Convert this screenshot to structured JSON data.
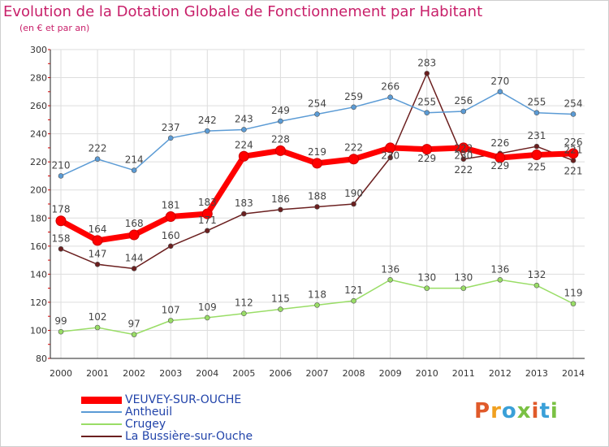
{
  "title": "Evolution de la Dotation Globale de Fonctionnement par Habitant",
  "subtitle": "(en € et par an)",
  "brand": {
    "text": "Proxiti",
    "colors": [
      "#e05a2a",
      "#f0a020",
      "#3aa0d8",
      "#7ac143",
      "#e05a2a",
      "#3aa0d8",
      "#7ac143"
    ]
  },
  "chart_data": {
    "type": "line",
    "x": [
      "2000",
      "2001",
      "2002",
      "2003",
      "2004",
      "2005",
      "2006",
      "2007",
      "2008",
      "2009",
      "2010",
      "2011",
      "2012",
      "2013",
      "2014"
    ],
    "ylim": [
      80,
      300
    ],
    "yticks": [
      80,
      100,
      120,
      140,
      160,
      180,
      200,
      220,
      240,
      260,
      280,
      300
    ],
    "grid": true,
    "legend_position": "bottom-left",
    "series": [
      {
        "name": "VEUVEY-SUR-OUCHE",
        "color": "#ff0000",
        "values": [
          178,
          164,
          168,
          181,
          183,
          224,
          228,
          219,
          222,
          230,
          229,
          230,
          223,
          225,
          226
        ],
        "labels": [
          "178",
          "164",
          "168",
          "181",
          "183",
          "224",
          "228",
          "219",
          "222",
          "",
          "",
          "",
          "",
          "",
          "226"
        ]
      },
      {
        "name": "Antheuil",
        "color": "#5b9bd5",
        "values": [
          210,
          222,
          214,
          237,
          242,
          243,
          249,
          254,
          259,
          266,
          255,
          256,
          270,
          255,
          254
        ],
        "labels": [
          "210",
          "222",
          "214",
          "237",
          "242",
          "243",
          "249",
          "254",
          "259",
          "266",
          "255",
          "256",
          "270",
          "255",
          "254"
        ]
      },
      {
        "name": "Crugey",
        "color": "#99dd66",
        "values": [
          99,
          102,
          97,
          107,
          109,
          112,
          115,
          118,
          121,
          136,
          130,
          130,
          136,
          132,
          119
        ],
        "labels": [
          "99",
          "102",
          "97",
          "107",
          "109",
          "112",
          "115",
          "118",
          "121",
          "136",
          "130",
          "130",
          "136",
          "132",
          "119"
        ]
      },
      {
        "name": "La Bussière-sur-Ouche",
        "color": "#6b1f1f",
        "values": [
          158,
          147,
          144,
          160,
          171,
          183,
          186,
          188,
          190,
          223,
          283,
          222,
          226,
          231,
          221
        ],
        "labels": [
          "158",
          "147",
          "144",
          "160",
          "171",
          "183",
          "186",
          "188",
          "190",
          "",
          "283",
          "222",
          "226",
          "231",
          "221"
        ]
      }
    ],
    "extra_labels": [
      "230",
      "229",
      "230",
      "222",
      "229",
      "225",
      "221"
    ]
  }
}
